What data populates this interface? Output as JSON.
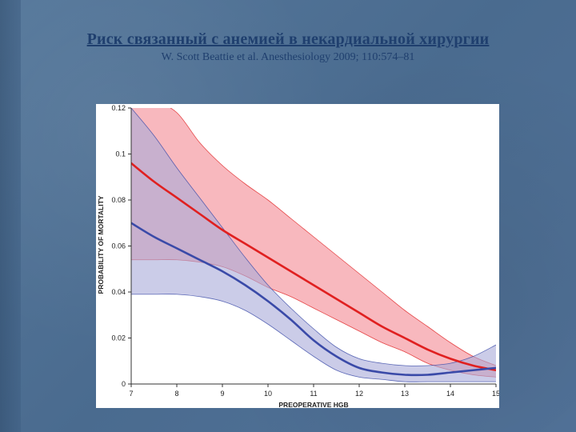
{
  "slide": {
    "title": "Риск связанный с анемией в некардиальной хирургии",
    "subtitle": "W. Scott Beattie et al. Anesthesiology 2009; 110:574–81"
  },
  "colors": {
    "background": "#4f6f93",
    "title": "#1f3f6e",
    "red_line": "#e02020",
    "red_band": "#f5a0a8",
    "blue_line": "#3a4aa8",
    "blue_band": "#a8aad8",
    "overlap": "#b080b8"
  },
  "chart_data": {
    "type": "line",
    "title": "",
    "xlabel": "PREOPERATIVE HGB",
    "ylabel": "PROBABILITY OF MORTALITY",
    "xlim": [
      7,
      15
    ],
    "ylim": [
      0,
      0.12
    ],
    "x_ticks": [
      "7",
      "8",
      "9",
      "10",
      "11",
      "12",
      "13",
      "14",
      "15"
    ],
    "y_ticks": [
      "0",
      "0.02",
      "0.04",
      "0.06",
      "0.08",
      "0.1",
      "0.12"
    ],
    "grid": false,
    "x": [
      7,
      7.5,
      8,
      8.5,
      9,
      9.5,
      10,
      10.5,
      11,
      11.5,
      12,
      12.5,
      13,
      13.5,
      14,
      14.5,
      15
    ],
    "series": [
      {
        "color": "#e02020",
        "values": [
          0.096,
          0.088,
          0.081,
          0.074,
          0.067,
          0.061,
          0.055,
          0.049,
          0.043,
          0.037,
          0.031,
          0.025,
          0.02,
          0.015,
          0.011,
          0.008,
          0.006
        ],
        "upper": [
          0.125,
          0.123,
          0.118,
          0.105,
          0.095,
          0.087,
          0.08,
          0.072,
          0.064,
          0.056,
          0.048,
          0.04,
          0.032,
          0.025,
          0.018,
          0.012,
          0.008
        ],
        "lower": [
          0.054,
          0.054,
          0.054,
          0.053,
          0.051,
          0.047,
          0.042,
          0.038,
          0.033,
          0.028,
          0.023,
          0.018,
          0.014,
          0.009,
          0.006,
          0.004,
          0.003
        ]
      },
      {
        "color": "#3a4aa8",
        "values": [
          0.07,
          0.064,
          0.059,
          0.054,
          0.049,
          0.043,
          0.036,
          0.028,
          0.019,
          0.012,
          0.007,
          0.005,
          0.004,
          0.004,
          0.005,
          0.006,
          0.007
        ],
        "upper": [
          0.12,
          0.108,
          0.094,
          0.081,
          0.068,
          0.055,
          0.043,
          0.033,
          0.024,
          0.016,
          0.011,
          0.009,
          0.008,
          0.008,
          0.009,
          0.012,
          0.017
        ],
        "lower": [
          0.039,
          0.039,
          0.039,
          0.038,
          0.036,
          0.032,
          0.026,
          0.019,
          0.012,
          0.006,
          0.003,
          0.002,
          0.001,
          0.001,
          0.001,
          0.001,
          0.001
        ]
      }
    ]
  }
}
